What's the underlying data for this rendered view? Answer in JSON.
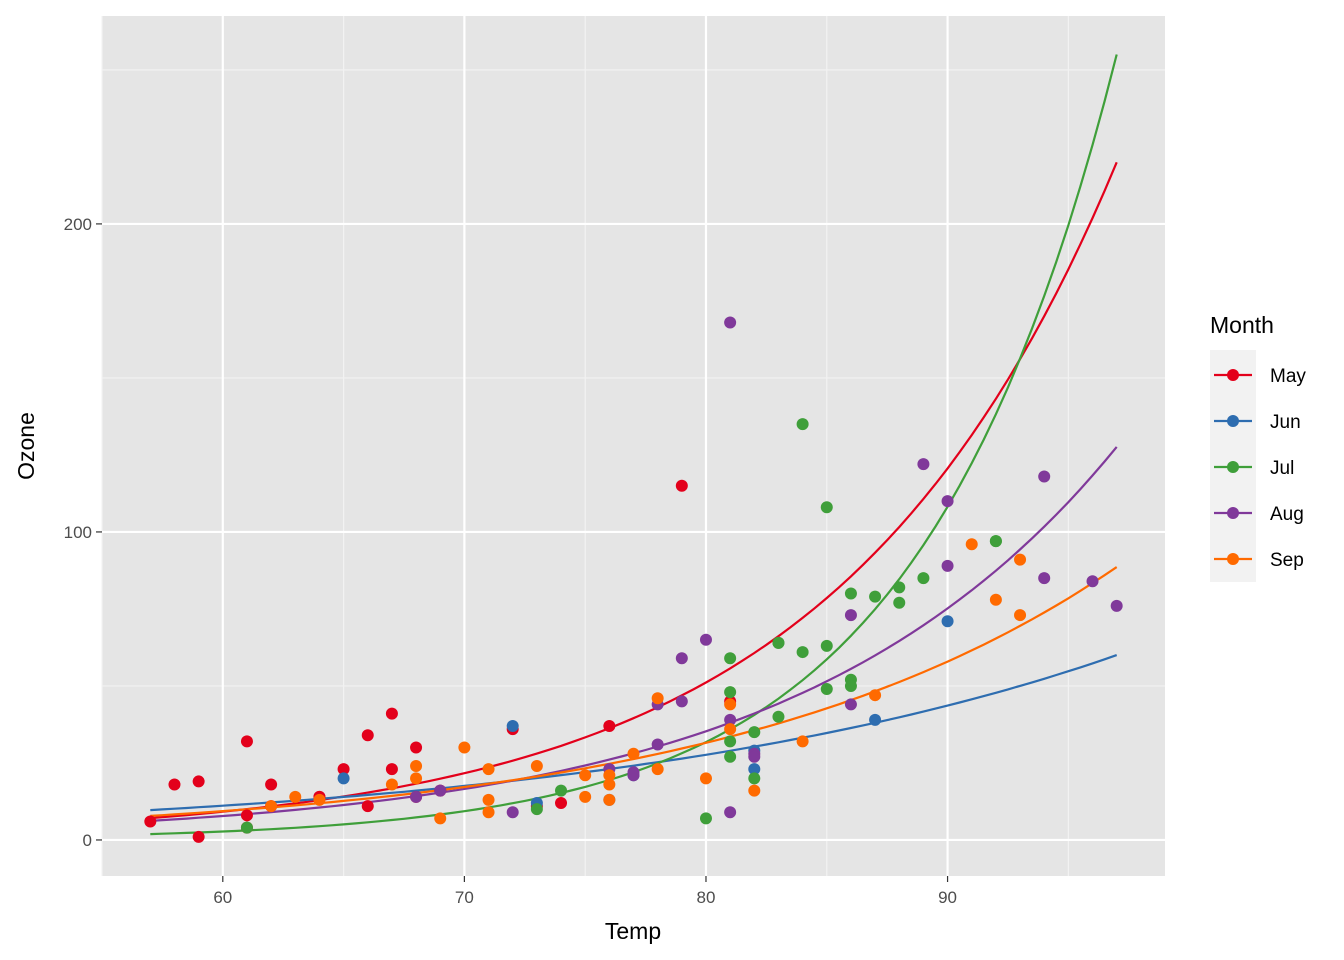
{
  "chart_data": {
    "type": "scatter",
    "title": "",
    "xlabel": "Temp",
    "ylabel": "Ozone",
    "xlim": [
      55,
      99
    ],
    "ylim": [
      -11.7,
      267.5
    ],
    "xticks": [
      60,
      70,
      80,
      90
    ],
    "yticks": [
      0,
      100,
      200
    ],
    "grid": true,
    "legend": {
      "title": "Month",
      "placement": "right"
    },
    "fit": "exponential (log-linear) curve per series over Temp 57-97",
    "series": [
      {
        "name": "May",
        "color": "#E3001B",
        "curve": {
          "x0": 57,
          "y0": 7.1,
          "x1": 97,
          "y1": 220
        },
        "points": [
          [
            67,
            41
          ],
          [
            72,
            36
          ],
          [
            74,
            12
          ],
          [
            62,
            18
          ],
          [
            65,
            23
          ],
          [
            59,
            19
          ],
          [
            61,
            8
          ],
          [
            69,
            16
          ],
          [
            66,
            11
          ],
          [
            68,
            14
          ],
          [
            58,
            18
          ],
          [
            64,
            14
          ],
          [
            66,
            34
          ],
          [
            57,
            6
          ],
          [
            68,
            30
          ],
          [
            62,
            11
          ],
          [
            59,
            1
          ],
          [
            61,
            4
          ],
          [
            61,
            32
          ],
          [
            67,
            23
          ],
          [
            81,
            45
          ],
          [
            79,
            115
          ],
          [
            76,
            37
          ],
          [
            73,
            11
          ],
          [
            64,
            14
          ]
        ]
      },
      {
        "name": "Jun",
        "color": "#2E6DB0",
        "curve": {
          "x0": 57,
          "y0": 9.7,
          "x1": 97,
          "y1": 60
        },
        "points": [
          [
            82,
            29
          ],
          [
            90,
            71
          ],
          [
            87,
            39
          ],
          [
            82,
            23
          ],
          [
            77,
            21
          ],
          [
            72,
            37
          ],
          [
            65,
            20
          ],
          [
            73,
            12
          ],
          [
            76,
            13
          ]
        ]
      },
      {
        "name": "Jul",
        "color": "#3F9F3A",
        "curve": {
          "x0": 57,
          "y0": 1.9,
          "x1": 97,
          "y1": 255
        },
        "points": [
          [
            84,
            135
          ],
          [
            85,
            49
          ],
          [
            81,
            32
          ],
          [
            83,
            64
          ],
          [
            83,
            40
          ],
          [
            88,
            77
          ],
          [
            92,
            97
          ],
          [
            92,
            97
          ],
          [
            89,
            85
          ],
          [
            73,
            10
          ],
          [
            81,
            27
          ],
          [
            80,
            7
          ],
          [
            81,
            48
          ],
          [
            82,
            35
          ],
          [
            84,
            61
          ],
          [
            87,
            79
          ],
          [
            85,
            63
          ],
          [
            74,
            16
          ],
          [
            86,
            80
          ],
          [
            85,
            108
          ],
          [
            82,
            20
          ],
          [
            86,
            52
          ],
          [
            88,
            82
          ],
          [
            86,
            50
          ],
          [
            83,
            64
          ],
          [
            81,
            59
          ],
          [
            61,
            4
          ]
        ]
      },
      {
        "name": "Aug",
        "color": "#80399A",
        "curve": {
          "x0": 57,
          "y0": 6.2,
          "x1": 97,
          "y1": 127.6
        },
        "points": [
          [
            81,
            39
          ],
          [
            81,
            9
          ],
          [
            82,
            28
          ],
          [
            82,
            27
          ],
          [
            78,
            44
          ],
          [
            79,
            59
          ],
          [
            80,
            65
          ],
          [
            79,
            45
          ],
          [
            77,
            22
          ],
          [
            76,
            23
          ],
          [
            78,
            31
          ],
          [
            72,
            9
          ],
          [
            81,
            168
          ],
          [
            86,
            73
          ],
          [
            86,
            44
          ],
          [
            89,
            122
          ],
          [
            90,
            110
          ],
          [
            90,
            89
          ],
          [
            94,
            118
          ],
          [
            94,
            85
          ],
          [
            96,
            84
          ],
          [
            97,
            76
          ],
          [
            68,
            14
          ],
          [
            69,
            16
          ],
          [
            77,
            21
          ]
        ]
      },
      {
        "name": "Sep",
        "color": "#FF6A00",
        "curve": {
          "x0": 57,
          "y0": 7.8,
          "x1": 97,
          "y1": 88.6
        },
        "points": [
          [
            63,
            14
          ],
          [
            64,
            13
          ],
          [
            67,
            18
          ],
          [
            68,
            20
          ],
          [
            68,
            24
          ],
          [
            69,
            7
          ],
          [
            70,
            30
          ],
          [
            71,
            23
          ],
          [
            71,
            13
          ],
          [
            71,
            9
          ],
          [
            73,
            24
          ],
          [
            75,
            21
          ],
          [
            75,
            14
          ],
          [
            76,
            21
          ],
          [
            76,
            18
          ],
          [
            76,
            13
          ],
          [
            77,
            28
          ],
          [
            78,
            46
          ],
          [
            78,
            23
          ],
          [
            80,
            20
          ],
          [
            81,
            44
          ],
          [
            81,
            36
          ],
          [
            82,
            16
          ],
          [
            84,
            32
          ],
          [
            87,
            47
          ],
          [
            91,
            96
          ],
          [
            92,
            78
          ],
          [
            93,
            91
          ],
          [
            93,
            73
          ],
          [
            62,
            11
          ]
        ]
      }
    ]
  }
}
